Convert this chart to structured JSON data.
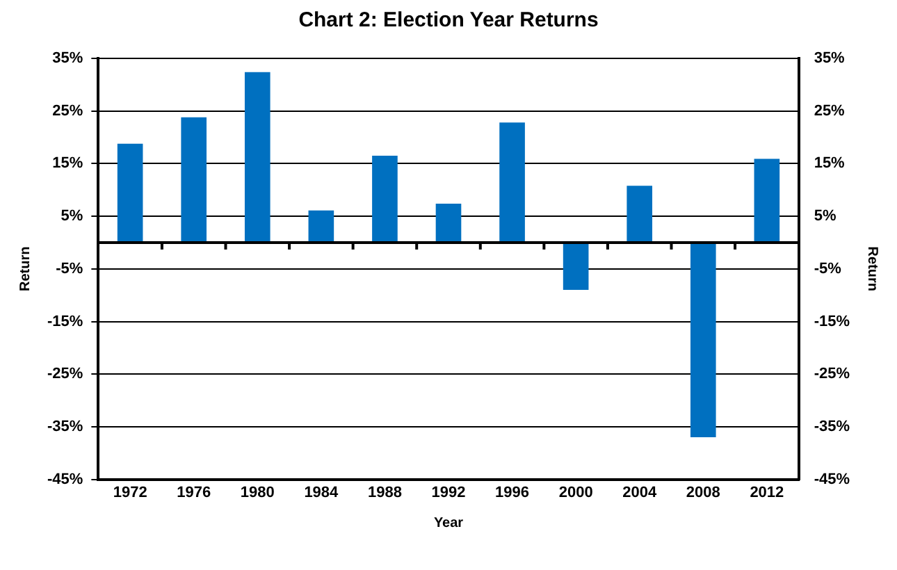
{
  "chart_data": {
    "type": "bar",
    "title": "Chart 2: Election Year Returns",
    "xlabel": "Year",
    "ylabel": "Return",
    "y2label": "Return",
    "categories": [
      "1972",
      "1976",
      "1980",
      "1984",
      "1988",
      "1992",
      "1996",
      "2000",
      "2004",
      "2008",
      "2012"
    ],
    "series": [
      {
        "color": "#0070c0",
        "values": [
          18.8,
          23.8,
          32.4,
          6.1,
          16.5,
          7.4,
          22.8,
          -9.0,
          10.8,
          -37.0,
          15.9
        ]
      }
    ],
    "ylim": [
      -45,
      35
    ],
    "yticks": [
      {
        "value": -45,
        "label": "-45%"
      },
      {
        "value": -35,
        "label": "-35%"
      },
      {
        "value": -25,
        "label": "-25%"
      },
      {
        "value": -15,
        "label": "-15%"
      },
      {
        "value": -5,
        "label": "-5%"
      },
      {
        "value": 5,
        "label": "5%"
      },
      {
        "value": 15,
        "label": "15%"
      },
      {
        "value": 25,
        "label": "25%"
      },
      {
        "value": 35,
        "label": "35%"
      }
    ],
    "y2lim": [
      -45,
      35
    ],
    "y2ticks": [
      {
        "value": -45,
        "label": "-45%"
      },
      {
        "value": -35,
        "label": "-35%"
      },
      {
        "value": -25,
        "label": "-25%"
      },
      {
        "value": -15,
        "label": "-15%"
      },
      {
        "value": -5,
        "label": "-5%"
      },
      {
        "value": 5,
        "label": "5%"
      },
      {
        "value": 15,
        "label": "15%"
      },
      {
        "value": 25,
        "label": "25%"
      },
      {
        "value": 35,
        "label": "35%"
      }
    ],
    "grid": "y",
    "legend": false
  }
}
